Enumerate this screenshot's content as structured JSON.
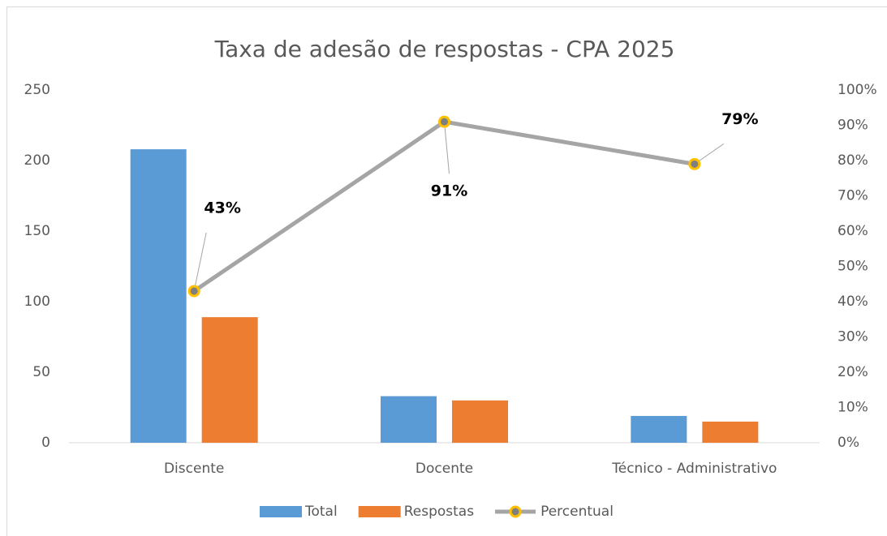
{
  "chart_data": {
    "type": "bar",
    "title": "Taxa de adesão de respostas - CPA 2025",
    "categories": [
      "Discente",
      "Docente",
      "Técnico - Administrativo"
    ],
    "series": [
      {
        "name": "Total",
        "type": "bar",
        "color": "#5b9bd5",
        "values": [
          208,
          33,
          19
        ]
      },
      {
        "name": "Respostas",
        "type": "bar",
        "color": "#ed7d31",
        "values": [
          89,
          30,
          15
        ]
      },
      {
        "name": "Percentual",
        "type": "line",
        "axis": "y2",
        "color": "#a5a5a5",
        "marker_color": "#ffc000",
        "values": [
          43,
          91,
          79
        ],
        "value_labels": [
          "43%",
          "91%",
          "79%"
        ]
      }
    ],
    "ylim": [
      0,
      250
    ],
    "yticks": [
      0,
      50,
      100,
      150,
      200,
      250
    ],
    "y2lim": [
      0,
      100
    ],
    "y2ticks": [
      {
        "value": 0,
        "label": "0%"
      },
      {
        "value": 10,
        "label": "10%"
      },
      {
        "value": 20,
        "label": "20%"
      },
      {
        "value": 30,
        "label": "30%"
      },
      {
        "value": 40,
        "label": "40%"
      },
      {
        "value": 50,
        "label": "50%"
      },
      {
        "value": 60,
        "label": "60%"
      },
      {
        "value": 70,
        "label": "70%"
      },
      {
        "value": 80,
        "label": "80%"
      },
      {
        "value": 90,
        "label": "90%"
      },
      {
        "value": 100,
        "label": "100%"
      }
    ],
    "legend": "bottom"
  }
}
